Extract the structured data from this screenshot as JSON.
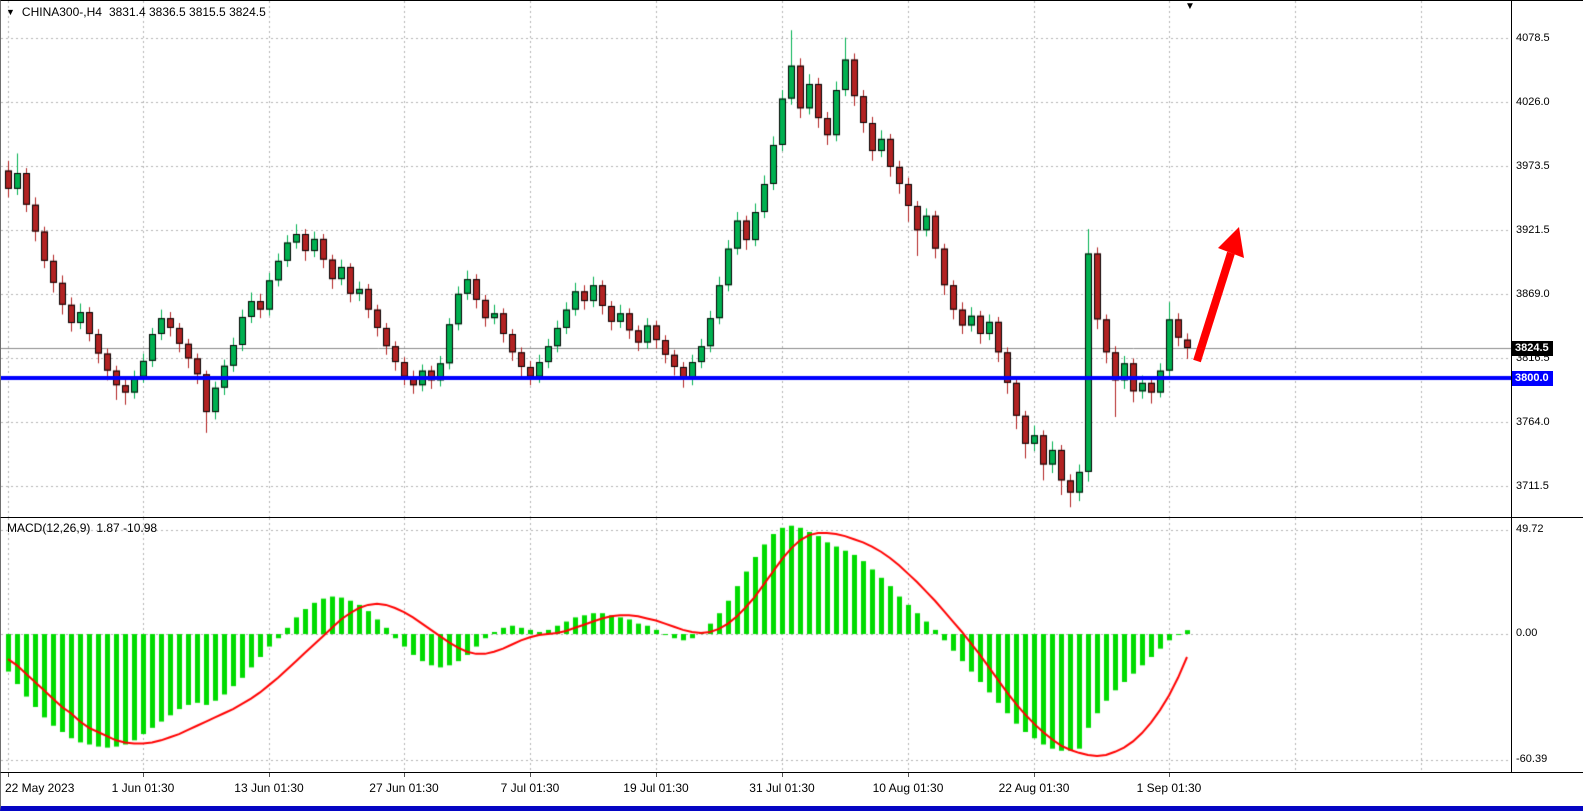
{
  "icons": {
    "dropdown": "▼",
    "shift_marker": "▼"
  },
  "chart_data": [
    {
      "type": "candlestick",
      "title": "CHINA300-,H4",
      "ohlc_label": "3831.4 3836.5 3815.5 3824.5",
      "timeframe": "H4",
      "ylim": [
        3686,
        4109
      ],
      "x0": 7,
      "dx": 9,
      "grid": true,
      "grid_color": "#b3b3b3",
      "bull_color": "#00B050",
      "bear_color": "#B22222",
      "y_tick_values": [
        4078.5,
        4026.0,
        3973.5,
        3921.5,
        3869.0,
        3816.5,
        3764.0,
        3711.5
      ],
      "y_tick_labels": [
        "4078.5",
        "4026.0",
        "3973.5",
        "3921.5",
        "3869.0",
        "3816.5",
        "3764.0",
        "3711.5"
      ],
      "grid_indices": [
        0,
        15,
        29,
        44,
        58,
        72,
        86,
        100,
        114,
        129,
        143,
        157
      ],
      "x_label_indices": [
        0,
        15,
        29,
        44,
        58,
        72,
        86,
        100,
        114,
        129
      ],
      "x_labels": [
        "22 May 2023",
        "1 Jun 01:30",
        "13 Jun 01:30",
        "27 Jun 01:30",
        "7 Jul 01:30",
        "19 Jul 01:30",
        "31 Jul 01:30",
        "10 Aug 01:30",
        "22 Aug 01:30",
        "1 Sep 01:30"
      ],
      "price_tags": [
        {
          "name": "current-price-tag",
          "label": "3824.5",
          "value": 3824.5,
          "bg": "#000000",
          "fg": "#ffffff"
        },
        {
          "name": "support-price-tag",
          "label": "3800.0",
          "value": 3800.0,
          "bg": "#0000FF",
          "fg": "#ffffff"
        }
      ],
      "hline": {
        "value": 3800.0,
        "color": "#0000FF",
        "width": 4
      },
      "bid_line": {
        "value": 3824.5,
        "color": "#8a8a8a"
      },
      "annotation_arrow": {
        "color": "#FF0000",
        "direction": "up-right"
      },
      "candles": [
        [
          3970,
          3978,
          3948,
          3955
        ],
        [
          3955,
          3984,
          3950,
          3968
        ],
        [
          3968,
          3972,
          3936,
          3942
        ],
        [
          3942,
          3948,
          3912,
          3920
        ],
        [
          3920,
          3924,
          3890,
          3896
        ],
        [
          3896,
          3901,
          3870,
          3878
        ],
        [
          3878,
          3884,
          3852,
          3860
        ],
        [
          3860,
          3866,
          3838,
          3845
        ],
        [
          3845,
          3861,
          3840,
          3854
        ],
        [
          3854,
          3858,
          3830,
          3836
        ],
        [
          3836,
          3840,
          3812,
          3820
        ],
        [
          3820,
          3824,
          3798,
          3806
        ],
        [
          3806,
          3810,
          3782,
          3794
        ],
        [
          3794,
          3800,
          3778,
          3788
        ],
        [
          3788,
          3806,
          3783,
          3801
        ],
        [
          3801,
          3820,
          3796,
          3814
        ],
        [
          3814,
          3841,
          3809,
          3836
        ],
        [
          3836,
          3856,
          3831,
          3849
        ],
        [
          3849,
          3854,
          3834,
          3841
        ],
        [
          3841,
          3845,
          3821,
          3828
        ],
        [
          3828,
          3832,
          3808,
          3816
        ],
        [
          3816,
          3820,
          3795,
          3803
        ],
        [
          3803,
          3806,
          3755,
          3772
        ],
        [
          3772,
          3797,
          3766,
          3792
        ],
        [
          3792,
          3815,
          3786,
          3810
        ],
        [
          3810,
          3833,
          3805,
          3827
        ],
        [
          3827,
          3856,
          3822,
          3850
        ],
        [
          3850,
          3870,
          3845,
          3863
        ],
        [
          3863,
          3869,
          3849,
          3856
        ],
        [
          3856,
          3886,
          3851,
          3880
        ],
        [
          3880,
          3902,
          3875,
          3896
        ],
        [
          3896,
          3917,
          3891,
          3911
        ],
        [
          3911,
          3926,
          3906,
          3918
        ],
        [
          3918,
          3922,
          3896,
          3904
        ],
        [
          3904,
          3920,
          3899,
          3914
        ],
        [
          3914,
          3918,
          3890,
          3897
        ],
        [
          3897,
          3901,
          3873,
          3881
        ],
        [
          3881,
          3897,
          3876,
          3891
        ],
        [
          3891,
          3894,
          3862,
          3869
        ],
        [
          3869,
          3879,
          3863,
          3873
        ],
        [
          3873,
          3877,
          3849,
          3856
        ],
        [
          3856,
          3860,
          3834,
          3841
        ],
        [
          3841,
          3845,
          3819,
          3826
        ],
        [
          3826,
          3830,
          3806,
          3813
        ],
        [
          3813,
          3817,
          3794,
          3801
        ],
        [
          3801,
          3806,
          3787,
          3794
        ],
        [
          3794,
          3811,
          3789,
          3806
        ],
        [
          3806,
          3810,
          3791,
          3798
        ],
        [
          3798,
          3818,
          3793,
          3812
        ],
        [
          3812,
          3849,
          3807,
          3844
        ],
        [
          3844,
          3875,
          3839,
          3869
        ],
        [
          3869,
          3888,
          3864,
          3881
        ],
        [
          3881,
          3885,
          3857,
          3864
        ],
        [
          3864,
          3868,
          3842,
          3849
        ],
        [
          3849,
          3860,
          3844,
          3853
        ],
        [
          3853,
          3857,
          3829,
          3836
        ],
        [
          3836,
          3840,
          3814,
          3821
        ],
        [
          3821,
          3825,
          3801,
          3809
        ],
        [
          3809,
          3814,
          3794,
          3801
        ],
        [
          3801,
          3819,
          3796,
          3813
        ],
        [
          3813,
          3832,
          3808,
          3826
        ],
        [
          3826,
          3847,
          3821,
          3841
        ],
        [
          3841,
          3862,
          3836,
          3856
        ],
        [
          3856,
          3878,
          3851,
          3871
        ],
        [
          3871,
          3876,
          3856,
          3863
        ],
        [
          3863,
          3883,
          3858,
          3876
        ],
        [
          3876,
          3880,
          3852,
          3859
        ],
        [
          3859,
          3863,
          3839,
          3846
        ],
        [
          3846,
          3860,
          3841,
          3853
        ],
        [
          3853,
          3857,
          3832,
          3839
        ],
        [
          3839,
          3843,
          3822,
          3829
        ],
        [
          3829,
          3849,
          3824,
          3843
        ],
        [
          3843,
          3847,
          3824,
          3831
        ],
        [
          3831,
          3835,
          3812,
          3819
        ],
        [
          3819,
          3823,
          3802,
          3809
        ],
        [
          3809,
          3813,
          3792,
          3799
        ],
        [
          3799,
          3819,
          3794,
          3813
        ],
        [
          3813,
          3832,
          3808,
          3826
        ],
        [
          3826,
          3855,
          3821,
          3849
        ],
        [
          3849,
          3883,
          3844,
          3876
        ],
        [
          3876,
          3913,
          3871,
          3906
        ],
        [
          3906,
          3936,
          3901,
          3929
        ],
        [
          3929,
          3933,
          3905,
          3913
        ],
        [
          3913,
          3943,
          3908,
          3936
        ],
        [
          3936,
          3966,
          3931,
          3959
        ],
        [
          3959,
          3998,
          3954,
          3991
        ],
        [
          3991,
          4036,
          3986,
          4029
        ],
        [
          4029,
          4085,
          4024,
          4056
        ],
        [
          4056,
          4062,
          4013,
          4021
        ],
        [
          4021,
          4049,
          4016,
          4041
        ],
        [
          4041,
          4046,
          4005,
          4013
        ],
        [
          4013,
          4018,
          3991,
          3999
        ],
        [
          3999,
          4043,
          3994,
          4036
        ],
        [
          4036,
          4079,
          4031,
          4061
        ],
        [
          4061,
          4066,
          4023,
          4031
        ],
        [
          4031,
          4036,
          4001,
          4009
        ],
        [
          4009,
          4014,
          3978,
          3986
        ],
        [
          3986,
          4003,
          3981,
          3996
        ],
        [
          3996,
          4000,
          3965,
          3973
        ],
        [
          3973,
          3978,
          3951,
          3959
        ],
        [
          3959,
          3964,
          3928,
          3941
        ],
        [
          3941,
          3945,
          3900,
          3921
        ],
        [
          3921,
          3939,
          3916,
          3933
        ],
        [
          3933,
          3937,
          3898,
          3906
        ],
        [
          3906,
          3910,
          3868,
          3876
        ],
        [
          3876,
          3880,
          3848,
          3856
        ],
        [
          3856,
          3862,
          3836,
          3843
        ],
        [
          3843,
          3858,
          3838,
          3851
        ],
        [
          3851,
          3855,
          3828,
          3836
        ],
        [
          3836,
          3852,
          3831,
          3846
        ],
        [
          3846,
          3850,
          3813,
          3821
        ],
        [
          3821,
          3825,
          3787,
          3796
        ],
        [
          3796,
          3800,
          3758,
          3769
        ],
        [
          3769,
          3773,
          3734,
          3746
        ],
        [
          3746,
          3761,
          3740,
          3753
        ],
        [
          3753,
          3757,
          3716,
          3729
        ],
        [
          3729,
          3748,
          3722,
          3741
        ],
        [
          3741,
          3745,
          3704,
          3716
        ],
        [
          3716,
          3721,
          3694,
          3706
        ],
        [
          3706,
          3729,
          3699,
          3723
        ],
        [
          3723,
          3922,
          3715,
          3902
        ],
        [
          3902,
          3907,
          3840,
          3848
        ],
        [
          3848,
          3852,
          3812,
          3821
        ],
        [
          3821,
          3826,
          3768,
          3798
        ],
        [
          3798,
          3818,
          3791,
          3812
        ],
        [
          3812,
          3816,
          3780,
          3789
        ],
        [
          3789,
          3802,
          3783,
          3796
        ],
        [
          3796,
          3801,
          3779,
          3788
        ],
        [
          3788,
          3812,
          3784,
          3806
        ],
        [
          3806,
          3862,
          3801,
          3848
        ],
        [
          3848,
          3853,
          3826,
          3833
        ],
        [
          3831.4,
          3836.5,
          3815.5,
          3824.5
        ]
      ]
    },
    {
      "type": "macd",
      "label": "MACD(12,26,9)",
      "values_label": "1.87 -10.98",
      "ylim": [
        -66.2,
        55.7
      ],
      "grid": true,
      "histogram_color": "#00DB00",
      "signal_color": "#FF0000",
      "y_tick_values": [
        49.72,
        0,
        -60.39
      ],
      "y_tick_labels": [
        "49.72",
        "0.00",
        "-60.39"
      ],
      "histogram": [
        -18,
        -24,
        -30,
        -35,
        -40,
        -44,
        -47,
        -50,
        -52,
        -53,
        -54,
        -54.5,
        -54,
        -53,
        -51,
        -48,
        -45,
        -42,
        -39,
        -36,
        -34,
        -33,
        -34,
        -32,
        -29,
        -25,
        -21,
        -16,
        -11,
        -6,
        -2,
        3,
        8,
        12,
        15,
        17,
        18,
        17.5,
        16,
        14,
        11,
        7,
        3,
        -2,
        -6,
        -10,
        -13,
        -15,
        -16,
        -15,
        -13,
        -10,
        -6,
        -2,
        1,
        3,
        4,
        3,
        2,
        1,
        2,
        4,
        6,
        8,
        9,
        10,
        10,
        9,
        8,
        7,
        5,
        4,
        2,
        0,
        -2,
        -3,
        -2,
        1,
        5,
        10,
        16,
        23,
        30,
        37,
        43,
        48,
        51,
        52,
        51,
        49,
        47,
        44,
        42,
        40,
        38,
        35,
        31,
        27,
        23,
        18,
        14,
        10,
        6,
        2,
        -3,
        -8,
        -13,
        -18,
        -23,
        -28,
        -33,
        -38,
        -43,
        -47,
        -50,
        -53,
        -55,
        -56,
        -56,
        -55,
        -45,
        -38,
        -32,
        -27,
        -23,
        -19,
        -15,
        -11,
        -7,
        -3,
        0,
        1.87
      ],
      "signal": [
        -12,
        -15,
        -19,
        -23,
        -27,
        -31,
        -35,
        -38,
        -42,
        -45,
        -47,
        -49,
        -51,
        -52,
        -52.5,
        -52.5,
        -52,
        -51,
        -49.5,
        -48,
        -46,
        -44,
        -42,
        -40,
        -38,
        -36,
        -33.5,
        -31,
        -28,
        -24.5,
        -21,
        -17,
        -13,
        -9,
        -5,
        -1,
        3,
        7,
        10,
        12.5,
        14,
        14.5,
        14,
        12.5,
        10.5,
        8,
        5,
        2,
        -1,
        -4,
        -6.5,
        -8.5,
        -9.5,
        -9.5,
        -8.5,
        -7,
        -5,
        -3,
        -1.5,
        -0.5,
        0,
        0.5,
        1.5,
        3,
        4.5,
        6,
        7.5,
        8.5,
        9,
        9,
        8.5,
        7.5,
        6.5,
        5,
        3.5,
        2,
        1,
        0.5,
        1,
        2.5,
        5,
        8.5,
        13,
        18,
        24,
        30,
        36,
        41,
        45,
        47.5,
        48.5,
        48.5,
        48,
        47,
        45.5,
        44,
        42,
        39.5,
        36.5,
        33,
        29,
        25,
        20.5,
        16,
        11,
        6,
        1,
        -4.5,
        -10,
        -16,
        -22,
        -28,
        -33.5,
        -38.5,
        -43,
        -47,
        -50.5,
        -53.5,
        -55.5,
        -57,
        -58,
        -58.5,
        -58,
        -56.5,
        -54.5,
        -51.5,
        -47.5,
        -42.5,
        -36.5,
        -29.5,
        -21,
        -11
      ]
    }
  ]
}
